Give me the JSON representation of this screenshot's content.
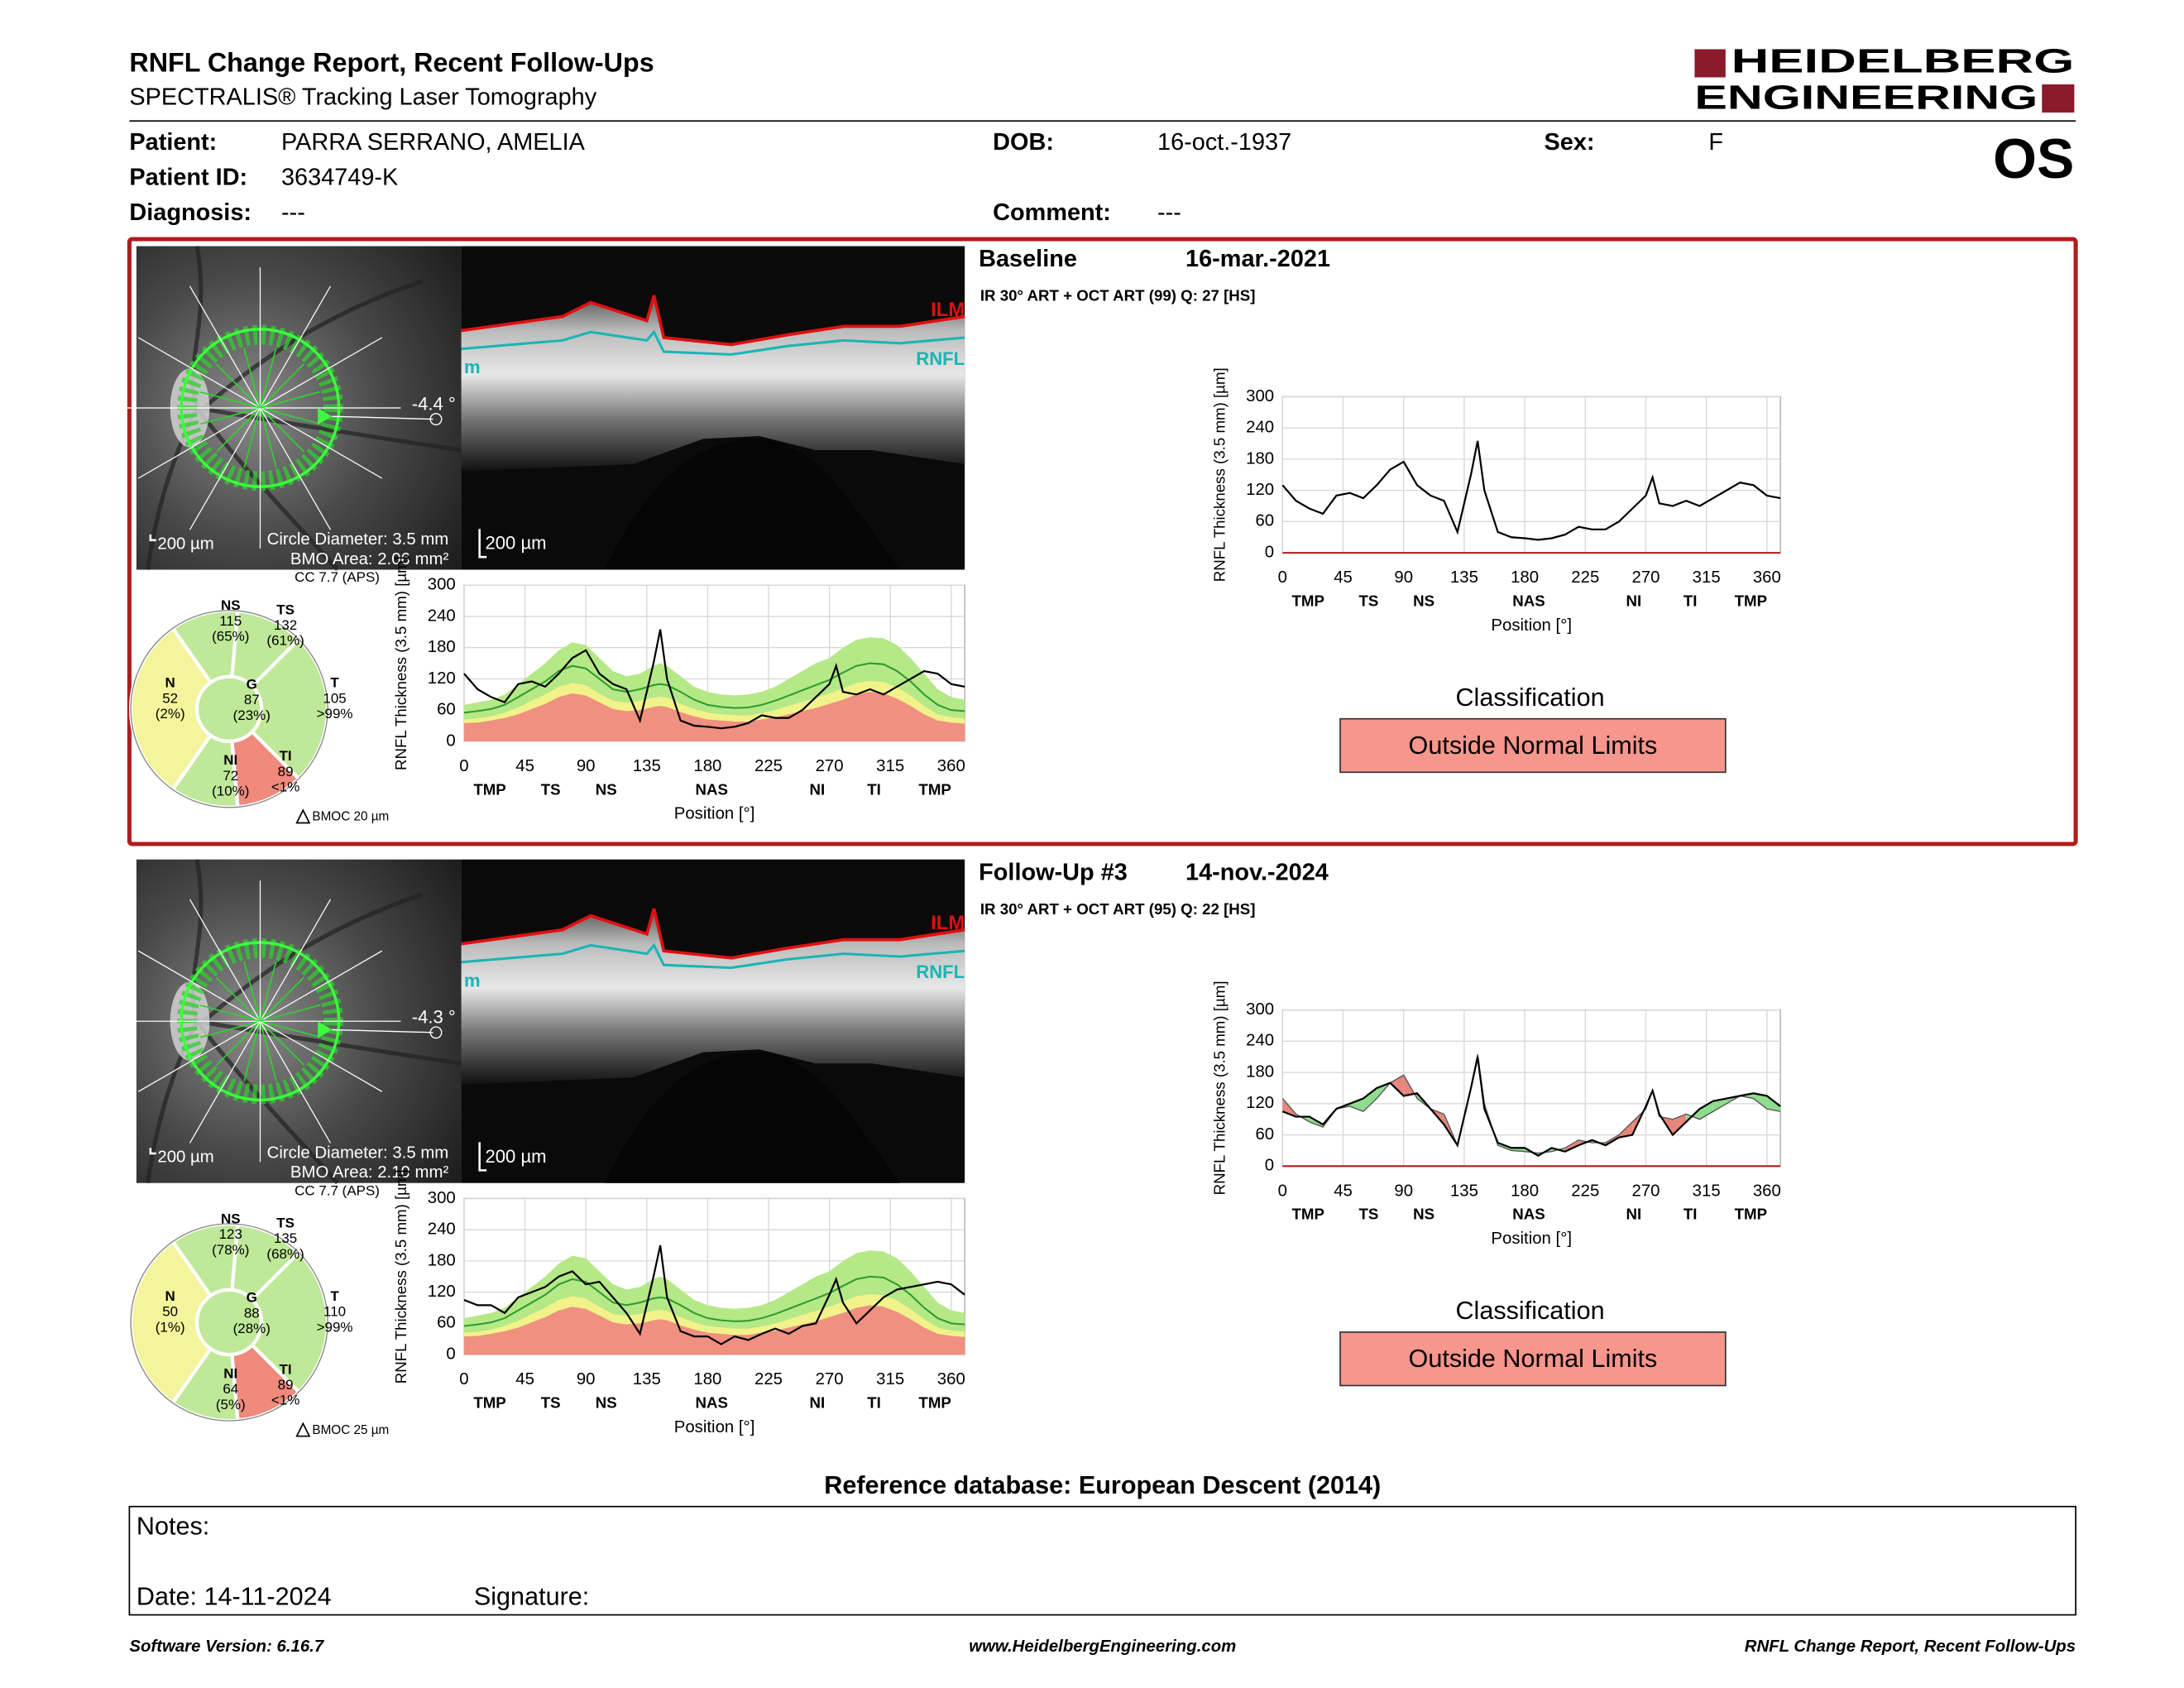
{
  "header": {
    "title": "RNFL Change Report, Recent Follow-Ups",
    "subtitle": "SPECTRALIS® Tracking Laser Tomography",
    "logo_top": "HEIDELBERG",
    "logo_bottom": "ENGINEERING",
    "eye": "OS"
  },
  "patient": {
    "patient_label": "Patient:",
    "patient": "PARRA SERRANO, AMELIA",
    "dob_label": "DOB:",
    "dob": "16-oct.-1937",
    "sex_label": "Sex:",
    "sex": "F",
    "id_label": "Patient ID:",
    "id": "3634749-K",
    "diagnosis_label": "Diagnosis:",
    "diagnosis": "---",
    "comment_label": "Comment:",
    "comment": "---"
  },
  "exams": [
    {
      "label": "Baseline",
      "date": "16-mar.-2021",
      "acquisition": "IR 30° ART + OCT ART (99) Q: 27 [HS]",
      "fundus": {
        "angle": "-4.4 °",
        "scale": "200 µm",
        "circle": "Circle Diameter: 3.5 mm",
        "bmo": "BMO Area: 2.06 mm²"
      },
      "bscan": {
        "ilm": "ILM",
        "rnfl": "RNFL",
        "cut": "m",
        "scale": "200 µm"
      },
      "sectors": {
        "cc": "CC 7.7 (APS)",
        "bmoc": "BMOC 20 µm",
        "items": [
          {
            "name": "NS",
            "value": 115,
            "percentile": "(65%)",
            "color": "#bfe898"
          },
          {
            "name": "TS",
            "value": 132,
            "percentile": "(61%)",
            "color": "#bfe898"
          },
          {
            "name": "N",
            "value": 52,
            "percentile": "(2%)",
            "color": "#f4f49c"
          },
          {
            "name": "G",
            "value": 87,
            "percentile": "(23%)",
            "color": "#bfe898"
          },
          {
            "name": "T",
            "value": 105,
            "percentile": ">99%",
            "color": "#bfe898"
          },
          {
            "name": "NI",
            "value": 72,
            "percentile": "(10%)",
            "color": "#bfe898"
          },
          {
            "name": "TI",
            "value": 89,
            "percentile": "<1%",
            "color": "#ef8a7c"
          }
        ]
      },
      "profile": {
        "type": "profile",
        "y_label": "RNFL Thickness (3.5 mm) [µm]",
        "x_label": "Position [°]",
        "xlim": [
          0,
          370
        ],
        "ylim": [
          0,
          300
        ],
        "xticks": [
          0,
          45,
          90,
          135,
          180,
          225,
          270,
          315,
          360
        ],
        "yticks": [
          0,
          60,
          120,
          180,
          240,
          300
        ],
        "sector_ticks": [
          {
            "value": 19,
            "label": "TMP"
          },
          {
            "value": 64,
            "label": "TS"
          },
          {
            "value": 105,
            "label": "NS"
          },
          {
            "value": 183,
            "label": "NAS"
          },
          {
            "value": 261,
            "label": "NI"
          },
          {
            "value": 303,
            "label": "TI"
          },
          {
            "value": 348,
            "label": "TMP"
          }
        ],
        "band_colors": [
          "#b5e887",
          "#f2f28a",
          "#f09080"
        ],
        "mean_color": "#2e9b2e",
        "line_color": "#000000",
        "x": [
          0,
          10,
          20,
          30,
          40,
          50,
          60,
          70,
          80,
          90,
          100,
          110,
          120,
          130,
          140,
          145,
          150,
          160,
          170,
          180,
          190,
          200,
          210,
          220,
          230,
          240,
          250,
          260,
          270,
          275,
          280,
          290,
          300,
          310,
          320,
          330,
          340,
          350,
          360,
          370
        ],
        "normal_upper": [
          70,
          75,
          80,
          90,
          110,
          130,
          150,
          175,
          190,
          185,
          160,
          135,
          125,
          130,
          145,
          150,
          145,
          125,
          105,
          95,
          90,
          88,
          90,
          95,
          105,
          120,
          135,
          150,
          160,
          170,
          180,
          195,
          200,
          198,
          185,
          160,
          130,
          100,
          85,
          80
        ],
        "normal_mean": [
          55,
          58,
          62,
          70,
          85,
          100,
          115,
          135,
          145,
          140,
          120,
          100,
          95,
          100,
          108,
          110,
          108,
          95,
          80,
          70,
          66,
          64,
          65,
          70,
          78,
          88,
          98,
          108,
          118,
          125,
          132,
          145,
          150,
          148,
          135,
          115,
          90,
          70,
          60,
          58
        ],
        "normal_lower": [
          42,
          44,
          48,
          55,
          65,
          78,
          90,
          105,
          112,
          108,
          92,
          78,
          74,
          78,
          84,
          86,
          84,
          72,
          62,
          55,
          52,
          50,
          50,
          54,
          60,
          68,
          76,
          84,
          92,
          97,
          102,
          112,
          116,
          114,
          104,
          88,
          68,
          52,
          46,
          44
        ],
        "borderline_lower": [
          35,
          36,
          40,
          45,
          52,
          62,
          72,
          85,
          92,
          88,
          75,
          62,
          58,
          60,
          66,
          68,
          66,
          56,
          48,
          42,
          40,
          38,
          38,
          42,
          46,
          52,
          58,
          64,
          72,
          76,
          80,
          90,
          95,
          92,
          82,
          68,
          52,
          40,
          36,
          34
        ],
        "measured": [
          130,
          100,
          85,
          75,
          110,
          115,
          105,
          130,
          160,
          175,
          130,
          110,
          100,
          40,
          150,
          215,
          120,
          40,
          30,
          28,
          25,
          28,
          35,
          50,
          45,
          45,
          60,
          85,
          110,
          145,
          95,
          90,
          100,
          90,
          105,
          120,
          135,
          130,
          110,
          105
        ]
      },
      "change": {
        "type": "change",
        "y_label": "RNFL Thickness (3.5 mm) [µm]",
        "x_label": "Position [°]",
        "xlim": [
          0,
          370
        ],
        "ylim": [
          0,
          300
        ],
        "xticks": [
          0,
          45,
          90,
          135,
          180,
          225,
          270,
          315,
          360
        ],
        "yticks": [
          0,
          60,
          120,
          180,
          240,
          300
        ],
        "sector_ticks": [
          {
            "value": 19,
            "label": "TMP"
          },
          {
            "value": 64,
            "label": "TS"
          },
          {
            "value": 105,
            "label": "NS"
          },
          {
            "value": 183,
            "label": "NAS"
          },
          {
            "value": 261,
            "label": "NI"
          },
          {
            "value": 303,
            "label": "TI"
          },
          {
            "value": 348,
            "label": "TMP"
          }
        ],
        "line_color": "#000000",
        "x": [
          0,
          10,
          20,
          30,
          40,
          50,
          60,
          70,
          80,
          90,
          100,
          110,
          120,
          130,
          140,
          145,
          150,
          160,
          170,
          180,
          190,
          200,
          210,
          220,
          230,
          240,
          250,
          260,
          270,
          275,
          280,
          290,
          300,
          310,
          320,
          330,
          340,
          350,
          360,
          370
        ],
        "baseline": [
          130,
          100,
          85,
          75,
          110,
          115,
          105,
          130,
          160,
          175,
          130,
          110,
          100,
          40,
          150,
          215,
          120,
          40,
          30,
          28,
          25,
          28,
          35,
          50,
          45,
          45,
          60,
          85,
          110,
          145,
          95,
          90,
          100,
          90,
          105,
          120,
          135,
          130,
          110,
          105
        ]
      },
      "classification_label": "Classification",
      "classification": "Outside Normal Limits",
      "classification_color": "#f7968c"
    },
    {
      "label": "Follow-Up #3",
      "date": "14-nov.-2024",
      "acquisition": "IR 30° ART + OCT ART (95) Q: 22 [HS]",
      "fundus": {
        "angle": "-4.3 °",
        "scale": "200 µm",
        "circle": "Circle Diameter: 3.5 mm",
        "bmo": "BMO Area: 2.10 mm²"
      },
      "bscan": {
        "ilm": "ILM",
        "rnfl": "RNFL",
        "cut": "m",
        "scale": "200 µm"
      },
      "sectors": {
        "cc": "CC 7.7 (APS)",
        "bmoc": "BMOC 25 µm",
        "items": [
          {
            "name": "NS",
            "value": 123,
            "percentile": "(78%)",
            "color": "#bfe898"
          },
          {
            "name": "TS",
            "value": 135,
            "percentile": "(68%)",
            "color": "#bfe898"
          },
          {
            "name": "N",
            "value": 50,
            "percentile": "(1%)",
            "color": "#f4f49c"
          },
          {
            "name": "G",
            "value": 88,
            "percentile": "(28%)",
            "color": "#bfe898"
          },
          {
            "name": "T",
            "value": 110,
            "percentile": ">99%",
            "color": "#bfe898"
          },
          {
            "name": "NI",
            "value": 64,
            "percentile": "(5%)",
            "color": "#bfe898"
          },
          {
            "name": "TI",
            "value": 89,
            "percentile": "<1%",
            "color": "#ef8a7c"
          }
        ]
      },
      "profile": {
        "type": "profile",
        "y_label": "RNFL Thickness (3.5 mm) [µm]",
        "x_label": "Position [°]",
        "xlim": [
          0,
          370
        ],
        "ylim": [
          0,
          300
        ],
        "xticks": [
          0,
          45,
          90,
          135,
          180,
          225,
          270,
          315,
          360
        ],
        "yticks": [
          0,
          60,
          120,
          180,
          240,
          300
        ],
        "sector_ticks": [
          {
            "value": 19,
            "label": "TMP"
          },
          {
            "value": 64,
            "label": "TS"
          },
          {
            "value": 105,
            "label": "NS"
          },
          {
            "value": 183,
            "label": "NAS"
          },
          {
            "value": 261,
            "label": "NI"
          },
          {
            "value": 303,
            "label": "TI"
          },
          {
            "value": 348,
            "label": "TMP"
          }
        ],
        "band_colors": [
          "#b5e887",
          "#f2f28a",
          "#f09080"
        ],
        "mean_color": "#2e9b2e",
        "line_color": "#000000",
        "x": [
          0,
          10,
          20,
          30,
          40,
          50,
          60,
          70,
          80,
          90,
          100,
          110,
          120,
          130,
          140,
          145,
          150,
          160,
          170,
          180,
          190,
          200,
          210,
          220,
          230,
          240,
          250,
          260,
          270,
          275,
          280,
          290,
          300,
          310,
          320,
          330,
          340,
          350,
          360,
          370
        ],
        "normal_upper": [
          70,
          75,
          80,
          90,
          110,
          130,
          150,
          175,
          190,
          185,
          160,
          135,
          125,
          130,
          145,
          150,
          145,
          125,
          105,
          95,
          90,
          88,
          90,
          95,
          105,
          120,
          135,
          150,
          160,
          170,
          180,
          195,
          200,
          198,
          185,
          160,
          130,
          100,
          85,
          80
        ],
        "normal_mean": [
          55,
          58,
          62,
          70,
          85,
          100,
          115,
          135,
          145,
          140,
          120,
          100,
          95,
          100,
          108,
          110,
          108,
          95,
          80,
          70,
          66,
          64,
          65,
          70,
          78,
          88,
          98,
          108,
          118,
          125,
          132,
          145,
          150,
          148,
          135,
          115,
          90,
          70,
          60,
          58
        ],
        "normal_lower": [
          42,
          44,
          48,
          55,
          65,
          78,
          90,
          105,
          112,
          108,
          92,
          78,
          74,
          78,
          84,
          86,
          84,
          72,
          62,
          55,
          52,
          50,
          50,
          54,
          60,
          68,
          76,
          84,
          92,
          97,
          102,
          112,
          116,
          114,
          104,
          88,
          68,
          52,
          46,
          44
        ],
        "borderline_lower": [
          35,
          36,
          40,
          45,
          52,
          62,
          72,
          85,
          92,
          88,
          75,
          62,
          58,
          60,
          66,
          68,
          66,
          56,
          48,
          42,
          40,
          38,
          38,
          42,
          46,
          52,
          58,
          64,
          72,
          76,
          80,
          90,
          95,
          92,
          82,
          68,
          52,
          40,
          36,
          34
        ],
        "measured": [
          105,
          95,
          95,
          80,
          110,
          120,
          130,
          150,
          160,
          135,
          140,
          110,
          80,
          40,
          150,
          210,
          110,
          45,
          35,
          35,
          20,
          35,
          28,
          40,
          50,
          40,
          55,
          60,
          115,
          145,
          100,
          60,
          85,
          110,
          125,
          130,
          135,
          140,
          135,
          115
        ]
      },
      "change": {
        "type": "change",
        "y_label": "RNFL Thickness (3.5 mm) [µm]",
        "x_label": "Position [°]",
        "xlim": [
          0,
          370
        ],
        "ylim": [
          0,
          300
        ],
        "xticks": [
          0,
          45,
          90,
          135,
          180,
          225,
          270,
          315,
          360
        ],
        "yticks": [
          0,
          60,
          120,
          180,
          240,
          300
        ],
        "sector_ticks": [
          {
            "value": 19,
            "label": "TMP"
          },
          {
            "value": 64,
            "label": "TS"
          },
          {
            "value": 105,
            "label": "NS"
          },
          {
            "value": 183,
            "label": "NAS"
          },
          {
            "value": 261,
            "label": "NI"
          },
          {
            "value": 303,
            "label": "TI"
          },
          {
            "value": 348,
            "label": "TMP"
          }
        ],
        "line_color": "#000000",
        "baseline_color": "#555555",
        "increase_color": "#8fdc8f",
        "decrease_color": "#e8867c",
        "x": [
          0,
          10,
          20,
          30,
          40,
          50,
          60,
          70,
          80,
          90,
          100,
          110,
          120,
          130,
          140,
          145,
          150,
          160,
          170,
          180,
          190,
          200,
          210,
          220,
          230,
          240,
          250,
          260,
          270,
          275,
          280,
          290,
          300,
          310,
          320,
          330,
          340,
          350,
          360,
          370
        ],
        "baseline": [
          130,
          100,
          85,
          75,
          110,
          115,
          105,
          130,
          160,
          175,
          130,
          110,
          100,
          40,
          150,
          215,
          120,
          40,
          30,
          28,
          25,
          28,
          35,
          50,
          45,
          45,
          60,
          85,
          110,
          145,
          95,
          90,
          100,
          90,
          105,
          120,
          135,
          130,
          110,
          105
        ],
        "follow_up": [
          105,
          95,
          95,
          80,
          110,
          120,
          130,
          150,
          160,
          135,
          140,
          110,
          80,
          40,
          150,
          210,
          110,
          45,
          35,
          35,
          20,
          35,
          28,
          40,
          50,
          40,
          55,
          60,
          115,
          145,
          100,
          60,
          85,
          110,
          125,
          130,
          135,
          140,
          135,
          115
        ]
      },
      "classification_label": "Classification",
      "classification": "Outside Normal Limits",
      "classification_color": "#f7968c"
    }
  ],
  "reference": "Reference database: European Descent (2014)",
  "notes": {
    "notes_label": "Notes:",
    "date": "Date: 14-11-2024",
    "signature": "Signature:"
  },
  "footer": {
    "version": "Software Version: 6.16.7",
    "website": "www.HeidelbergEngineering.com",
    "report": "RNFL Change Report, Recent Follow-Ups"
  }
}
